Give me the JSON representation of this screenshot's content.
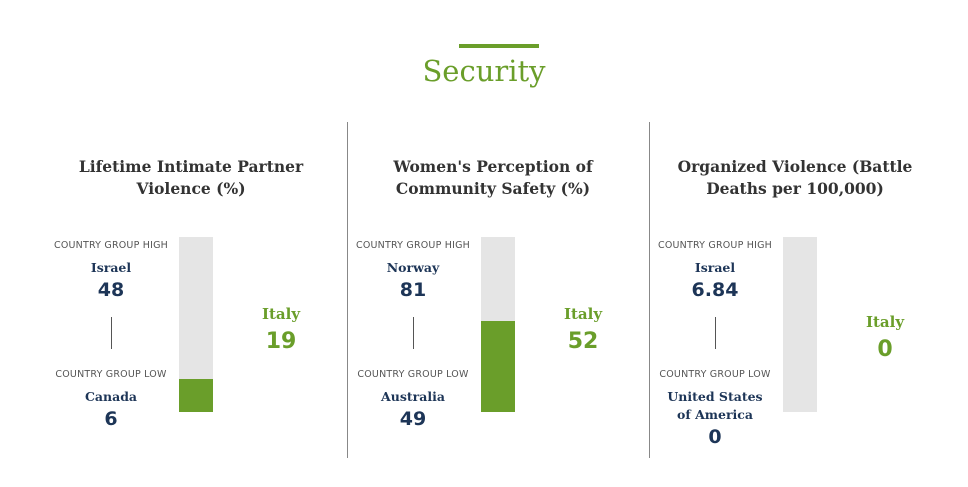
{
  "section_title": "Security",
  "accent": "#6a9e2a",
  "chart_data": [
    {
      "type": "bar",
      "title": "Lifetime Intimate Partner Violence (%)",
      "high_label": "COUNTRY GROUP HIGH",
      "high_country": "Israel",
      "high_value": "48",
      "low_label": "COUNTRY GROUP LOW",
      "low_country": "Canada",
      "low_value": "6",
      "country": "Italy",
      "value": "19",
      "fill_fraction": 0.19
    },
    {
      "type": "bar",
      "title": "Women's Perception of Community Safety (%)",
      "high_label": "COUNTRY GROUP HIGH",
      "high_country": "Norway",
      "high_value": "81",
      "low_label": "COUNTRY GROUP LOW",
      "low_country": "Australia",
      "low_value": "49",
      "country": "Italy",
      "value": "52",
      "fill_fraction": 0.52
    },
    {
      "type": "bar",
      "title": "Organized Violence (Battle Deaths per 100,000)",
      "high_label": "COUNTRY GROUP HIGH",
      "high_country": "Israel",
      "high_value": "6.84",
      "low_label": "COUNTRY GROUP LOW",
      "low_country": "United States of America",
      "low_value": "0",
      "country": "Italy",
      "value": "0",
      "fill_fraction": 0
    }
  ]
}
